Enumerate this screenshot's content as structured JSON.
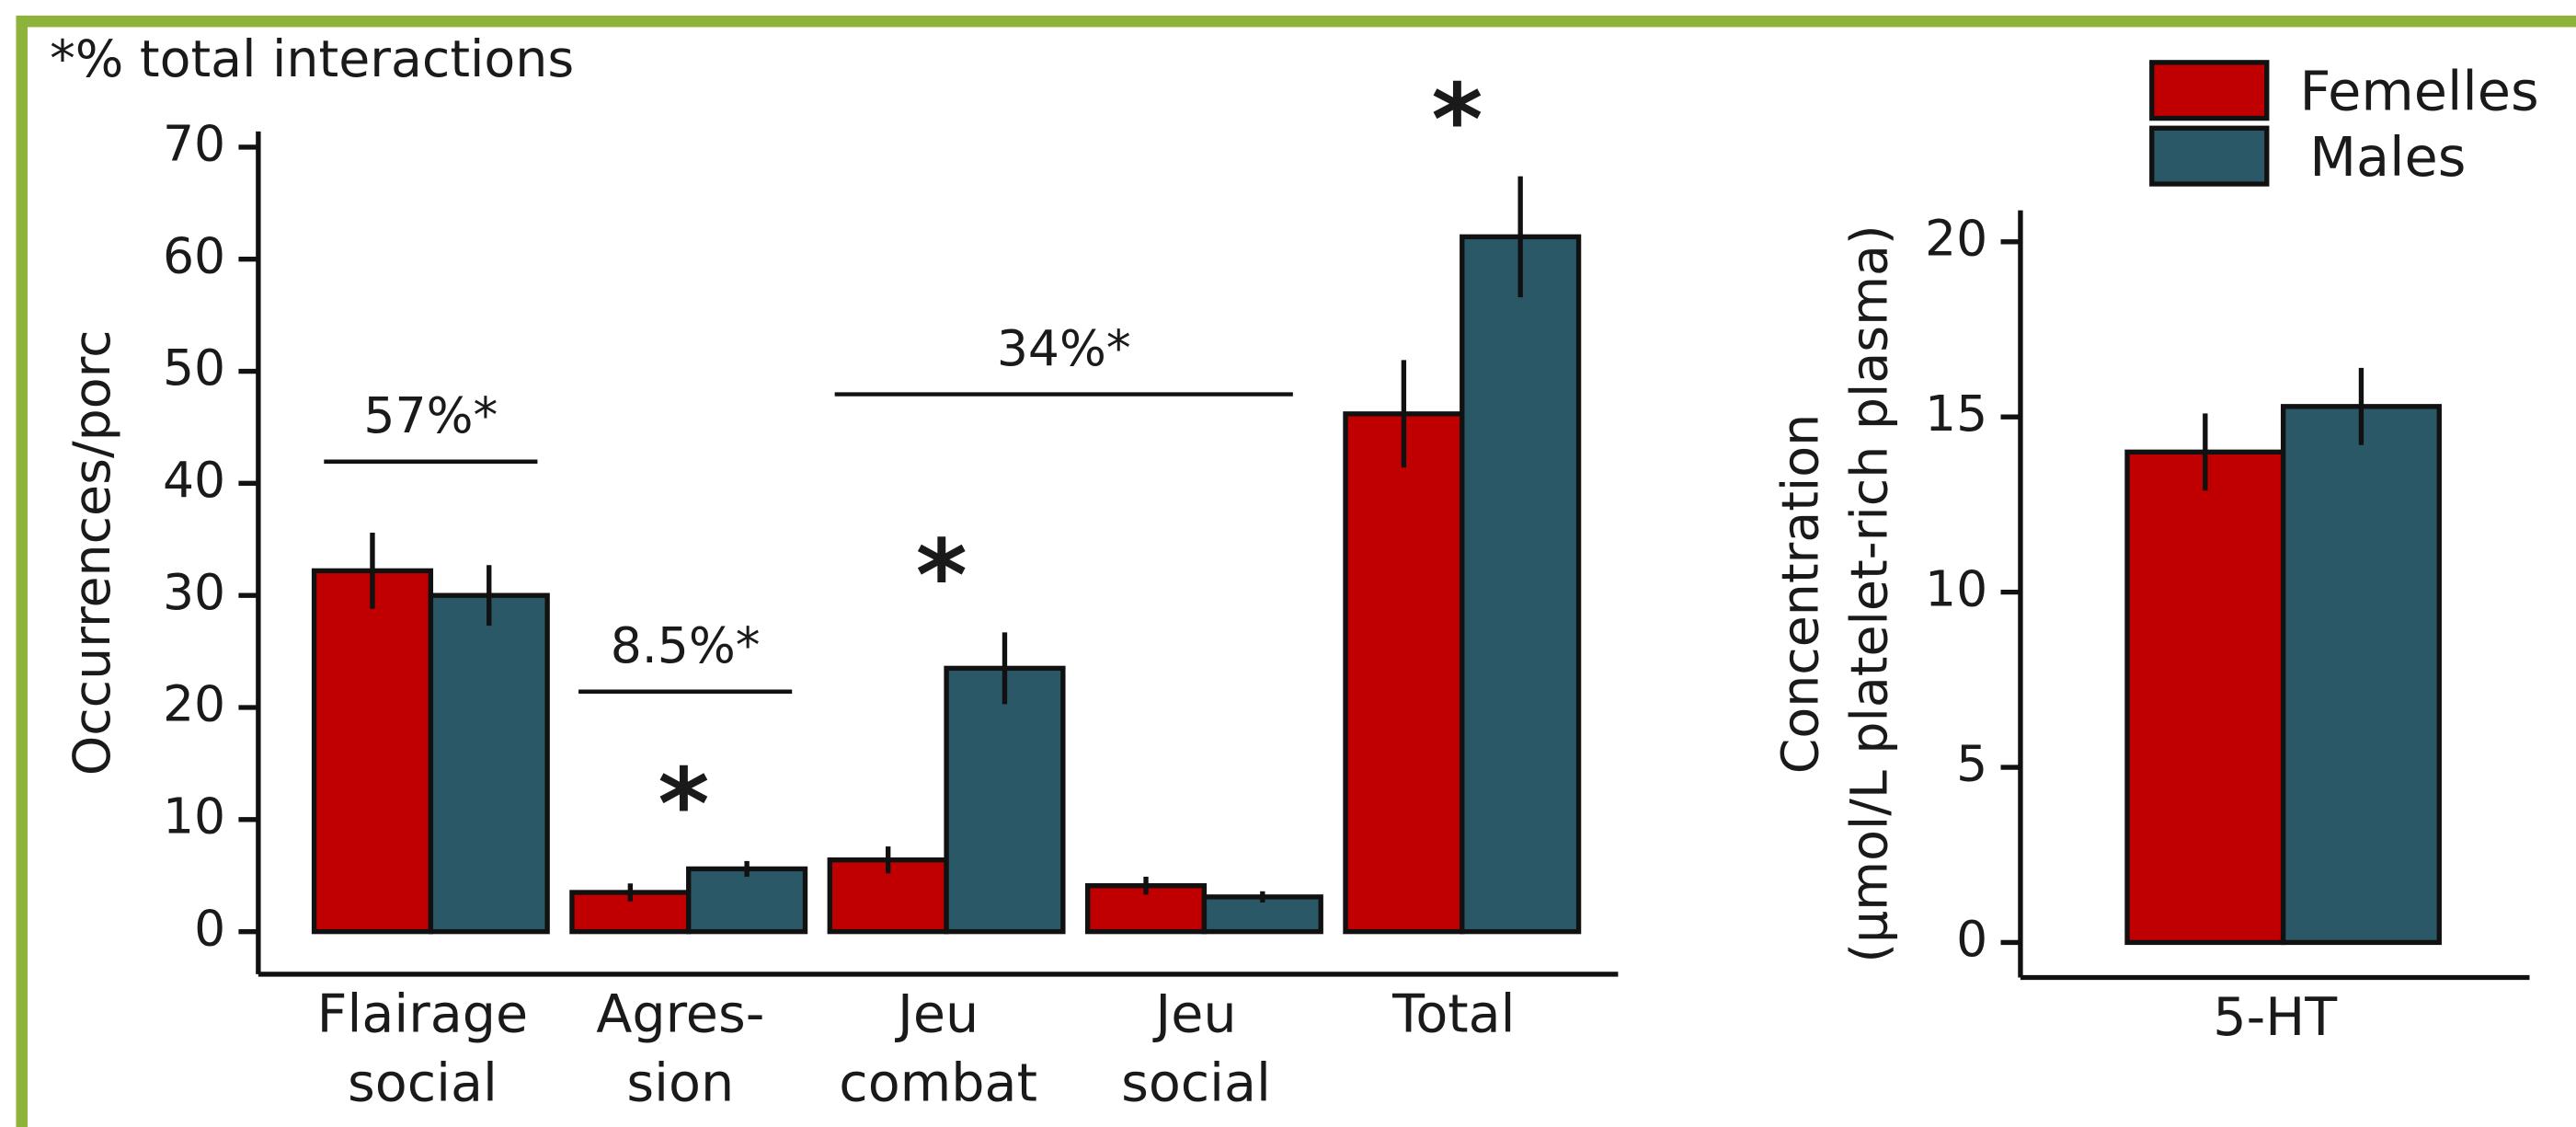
{
  "chart_data": [
    {
      "type": "bar",
      "subtitle": "*% total interactions",
      "ylabel": "Occurrences/porc",
      "categories": [
        "Flairage social",
        "Agres- sion",
        "Jeu combat",
        "Jeu social",
        "Total"
      ],
      "series": [
        {
          "name": "Femelles",
          "color": "#c00000",
          "values": [
            32.2,
            3.5,
            6.4,
            4.1,
            46.2
          ],
          "errors": [
            3.4,
            0.8,
            1.2,
            0.8,
            4.8
          ]
        },
        {
          "name": "Males",
          "color": "#2a5866",
          "values": [
            30,
            5.6,
            23.5,
            3.1,
            62
          ],
          "errors": [
            2.7,
            0.7,
            3.2,
            0.5,
            5.4
          ]
        }
      ],
      "significance": [
        null,
        "*",
        "*",
        null,
        "*"
      ],
      "annotations": [
        "57%*",
        "8.5%*",
        "34%*"
      ],
      "ylim": [
        -3.8,
        71.4
      ],
      "yticks": [
        0,
        10,
        20,
        30,
        40,
        50,
        60,
        70
      ]
    },
    {
      "type": "bar",
      "ylabel": [
        "Concentration",
        "(µmol/L platelet-rich plasma)"
      ],
      "categories": [
        "5-HT"
      ],
      "series": [
        {
          "name": "Femelles",
          "color": "#c00000",
          "values": [
            14
          ],
          "errors": [
            1.1
          ]
        },
        {
          "name": "Males",
          "color": "#2a5866",
          "values": [
            15.3
          ],
          "errors": [
            1.1
          ]
        }
      ],
      "ylim": [
        -1,
        20.9
      ],
      "yticks": [
        0,
        5,
        10,
        15,
        20
      ],
      "legend": "top-right"
    }
  ]
}
